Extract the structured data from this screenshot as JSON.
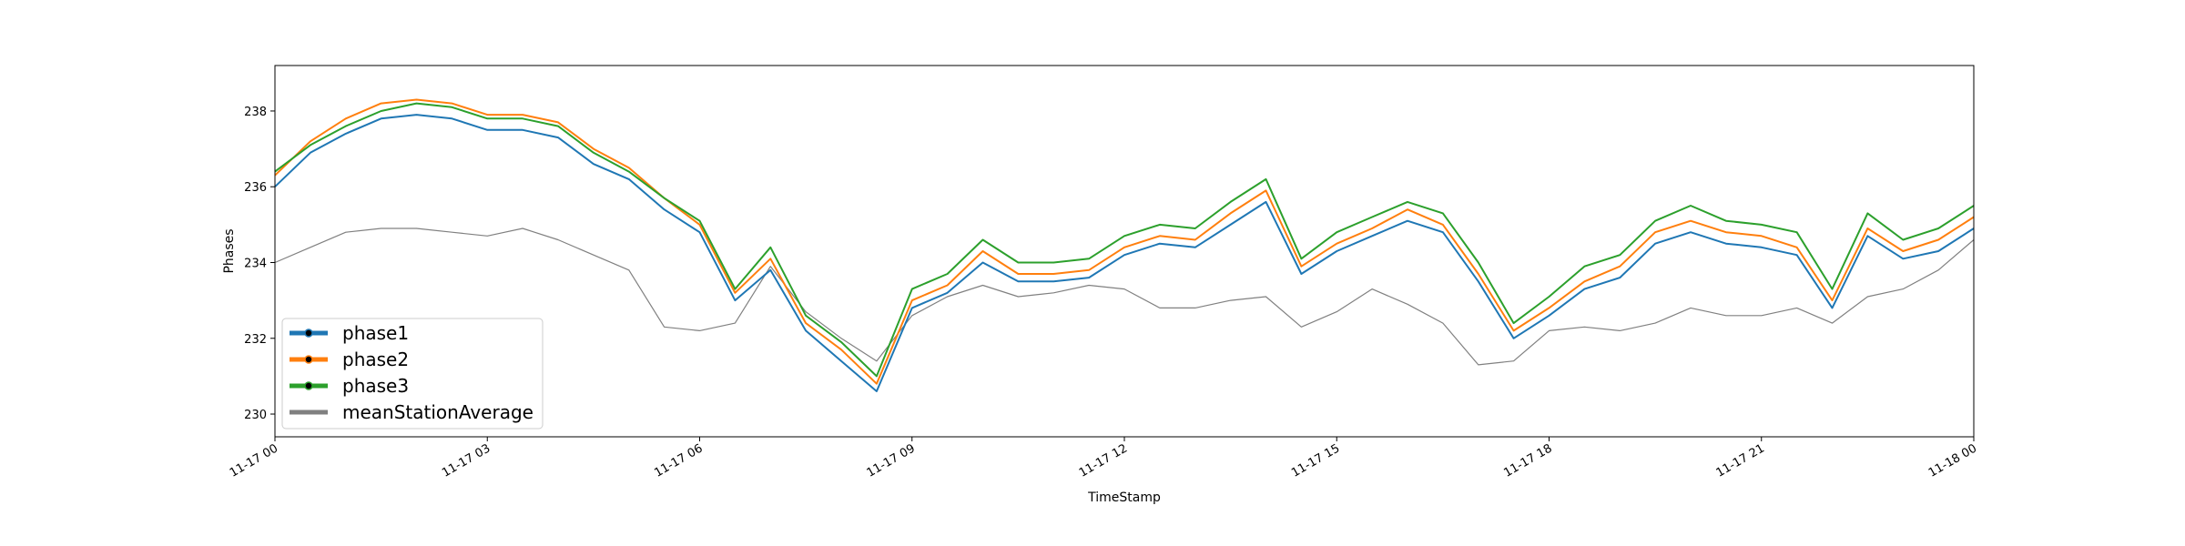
{
  "chart_data": {
    "type": "line",
    "title": "",
    "xlabel": "TimeStamp",
    "ylabel": "Phases",
    "grid": false,
    "legend_position": "lower-left",
    "x_range": [
      "11-17 00:00",
      "11-18 00:00"
    ],
    "ylim": [
      229.4,
      239.2
    ],
    "x_ticks": [
      {
        "hour": 0,
        "label": "11-17 00"
      },
      {
        "hour": 3,
        "label": "11-17 03"
      },
      {
        "hour": 6,
        "label": "11-17 06"
      },
      {
        "hour": 9,
        "label": "11-17 09"
      },
      {
        "hour": 12,
        "label": "11-17 12"
      },
      {
        "hour": 15,
        "label": "11-17 15"
      },
      {
        "hour": 18,
        "label": "11-17 18"
      },
      {
        "hour": 21,
        "label": "11-17 21"
      },
      {
        "hour": 24,
        "label": "11-18 00"
      }
    ],
    "y_ticks": [
      230,
      232,
      234,
      236,
      238
    ],
    "series": [
      {
        "name": "phase1",
        "color": "#1f77b4",
        "x_hours": [
          0,
          0.5,
          1,
          1.5,
          2,
          2.5,
          3,
          3.5,
          4,
          4.5,
          5,
          5.5,
          6,
          6.5,
          7,
          7.5,
          8,
          8.5,
          9,
          9.5,
          10,
          10.5,
          11,
          11.5,
          12,
          12.5,
          13,
          13.5,
          14,
          14.5,
          15,
          15.5,
          16,
          16.5,
          17,
          17.5,
          18,
          18.5,
          19,
          19.5,
          20,
          20.5,
          21,
          21.5,
          22,
          22.5,
          23,
          23.5,
          24
        ],
        "values": [
          236.0,
          236.9,
          237.4,
          237.8,
          237.9,
          237.8,
          237.5,
          237.5,
          237.3,
          236.6,
          236.2,
          235.4,
          234.8,
          233.0,
          233.8,
          232.2,
          231.4,
          230.6,
          232.8,
          233.2,
          234.0,
          233.5,
          233.5,
          233.6,
          234.2,
          234.5,
          234.4,
          235.0,
          235.6,
          233.7,
          234.3,
          234.7,
          235.1,
          234.8,
          233.5,
          232.0,
          232.6,
          233.3,
          233.6,
          234.5,
          234.8,
          234.5,
          234.4,
          234.2,
          232.8,
          234.7,
          234.1,
          234.3,
          234.9
        ]
      },
      {
        "name": "phase2",
        "color": "#ff7f0e",
        "x_hours": [
          0,
          0.5,
          1,
          1.5,
          2,
          2.5,
          3,
          3.5,
          4,
          4.5,
          5,
          5.5,
          6,
          6.5,
          7,
          7.5,
          8,
          8.5,
          9,
          9.5,
          10,
          10.5,
          11,
          11.5,
          12,
          12.5,
          13,
          13.5,
          14,
          14.5,
          15,
          15.5,
          16,
          16.5,
          17,
          17.5,
          18,
          18.5,
          19,
          19.5,
          20,
          20.5,
          21,
          21.5,
          22,
          22.5,
          23,
          23.5,
          24
        ],
        "values": [
          236.3,
          237.2,
          237.8,
          238.2,
          238.3,
          238.2,
          237.9,
          237.9,
          237.7,
          237.0,
          236.5,
          235.7,
          235.0,
          233.2,
          234.1,
          232.4,
          231.7,
          230.8,
          233.0,
          233.4,
          234.3,
          233.7,
          233.7,
          233.8,
          234.4,
          234.7,
          234.6,
          235.3,
          235.9,
          233.9,
          234.5,
          234.9,
          235.4,
          235.0,
          233.7,
          232.2,
          232.8,
          233.5,
          233.9,
          234.8,
          235.1,
          234.8,
          234.7,
          234.4,
          233.0,
          234.9,
          234.3,
          234.6,
          235.2
        ]
      },
      {
        "name": "phase3",
        "color": "#2ca02c",
        "x_hours": [
          0,
          0.5,
          1,
          1.5,
          2,
          2.5,
          3,
          3.5,
          4,
          4.5,
          5,
          5.5,
          6,
          6.5,
          7,
          7.5,
          8,
          8.5,
          9,
          9.5,
          10,
          10.5,
          11,
          11.5,
          12,
          12.5,
          13,
          13.5,
          14,
          14.5,
          15,
          15.5,
          16,
          16.5,
          17,
          17.5,
          18,
          18.5,
          19,
          19.5,
          20,
          20.5,
          21,
          21.5,
          22,
          22.5,
          23,
          23.5,
          24
        ],
        "values": [
          236.4,
          237.1,
          237.6,
          238.0,
          238.2,
          238.1,
          237.8,
          237.8,
          237.6,
          236.9,
          236.4,
          235.7,
          235.1,
          233.3,
          234.4,
          232.6,
          231.9,
          231.0,
          233.3,
          233.7,
          234.6,
          234.0,
          234.0,
          234.1,
          234.7,
          235.0,
          234.9,
          235.6,
          236.2,
          234.1,
          234.8,
          235.2,
          235.6,
          235.3,
          234.0,
          232.4,
          233.1,
          233.9,
          234.2,
          235.1,
          235.5,
          235.1,
          235.0,
          234.8,
          233.3,
          235.3,
          234.6,
          234.9,
          235.5
        ]
      },
      {
        "name": "meanStationAverage",
        "color": "#808080",
        "x_hours": [
          0,
          0.5,
          1,
          1.5,
          2,
          2.5,
          3,
          3.5,
          4,
          4.5,
          5,
          5.5,
          6,
          6.5,
          7,
          7.5,
          8,
          8.5,
          9,
          9.5,
          10,
          10.5,
          11,
          11.5,
          12,
          12.5,
          13,
          13.5,
          14,
          14.5,
          15,
          15.5,
          16,
          16.5,
          17,
          17.5,
          18,
          18.5,
          19,
          19.5,
          20,
          20.5,
          21,
          21.5,
          22,
          22.5,
          23,
          23.5,
          24
        ],
        "values": [
          234.0,
          234.4,
          234.8,
          234.9,
          234.9,
          234.8,
          234.7,
          234.9,
          234.6,
          234.2,
          233.8,
          232.3,
          232.2,
          232.4,
          233.9,
          232.7,
          232.0,
          231.4,
          232.6,
          233.1,
          233.4,
          233.1,
          233.2,
          233.4,
          233.3,
          232.8,
          232.8,
          233.0,
          233.1,
          232.3,
          232.7,
          233.3,
          232.9,
          232.4,
          231.3,
          231.4,
          232.2,
          232.3,
          232.2,
          232.4,
          232.8,
          232.6,
          232.6,
          232.8,
          232.4,
          233.1,
          233.3,
          233.8,
          234.6
        ]
      }
    ],
    "legend": [
      {
        "label": "phase1",
        "color": "#1f77b4",
        "marker": true
      },
      {
        "label": "phase2",
        "color": "#ff7f0e",
        "marker": true
      },
      {
        "label": "phase3",
        "color": "#2ca02c",
        "marker": true
      },
      {
        "label": "meanStationAverage",
        "color": "#808080",
        "marker": false
      }
    ]
  }
}
